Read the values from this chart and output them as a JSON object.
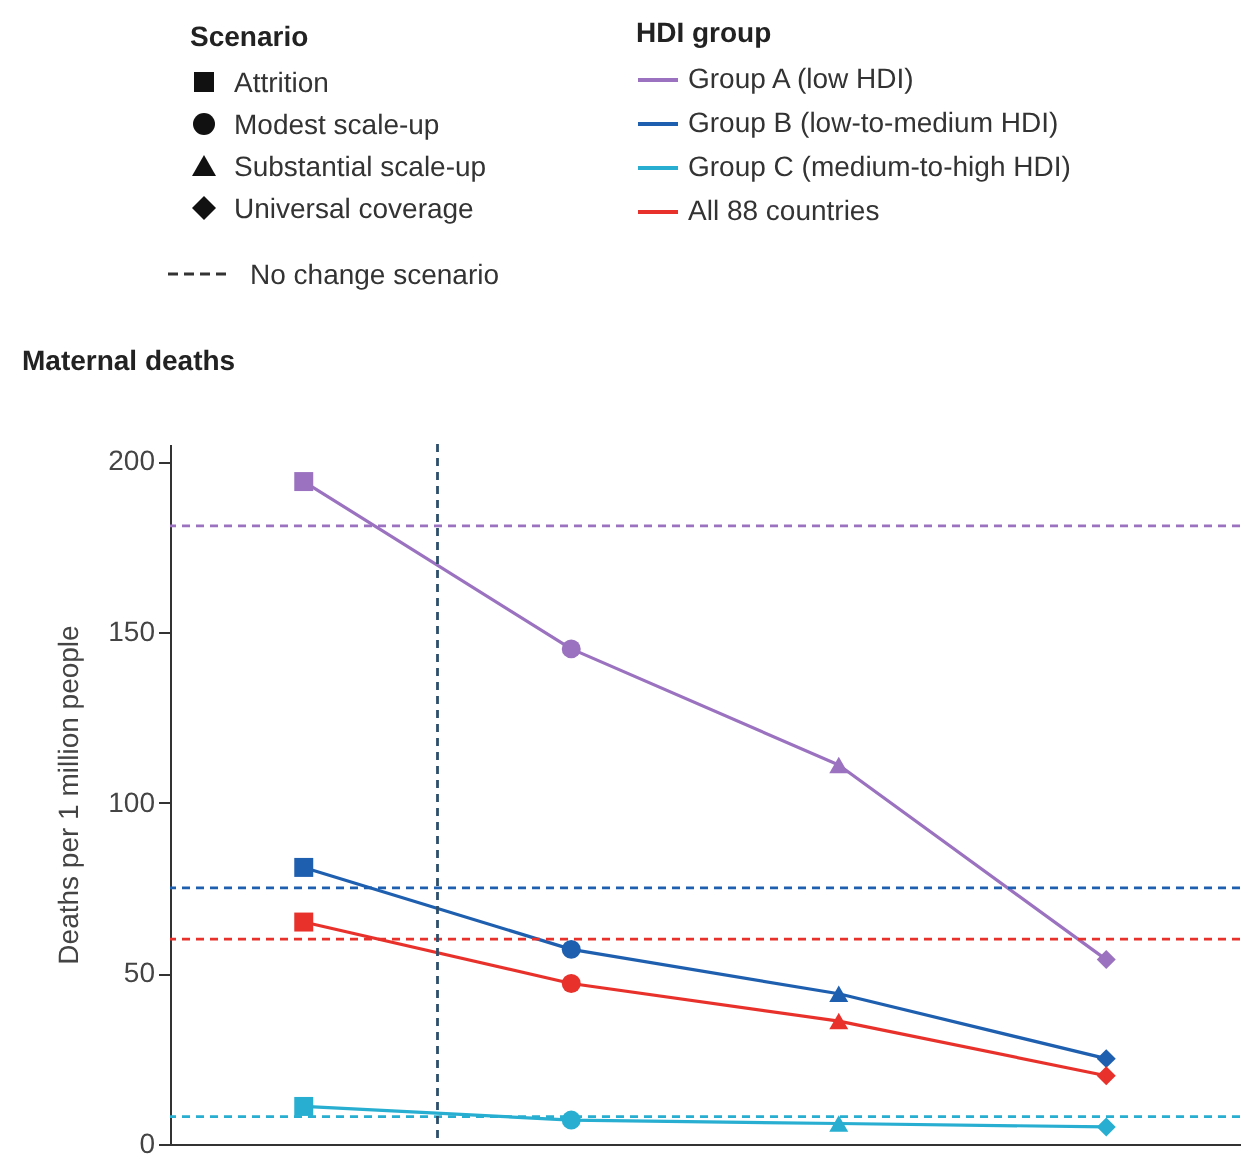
{
  "chart_data": {
    "type": "line",
    "title": "Maternal deaths",
    "ylabel": "Deaths per 1 million people",
    "legend_title": "HDI group",
    "annotations": [
      "Scenario",
      "Attrition",
      "Modest scale-up",
      "Substantial scale-up",
      "Universal coverage",
      "No change scenario"
    ],
    "categories": [
      null,
      null,
      null,
      null
    ],
    "series": [
      {
        "name": "Group A (low HDI)",
        "color": "#9b72c0",
        "marker": "square",
        "values": [
          194,
          145,
          111,
          54
        ]
      },
      {
        "name": "Group B (low-to-medium HDI)",
        "color": "#1f5fb0",
        "marker": "square",
        "values": [
          81,
          57,
          44,
          25
        ]
      },
      {
        "name": "Group C (medium-to-high HDI)",
        "color": "#27aed0",
        "marker": "square",
        "values": [
          11,
          7,
          6,
          5
        ]
      },
      {
        "name": "All 88 countries",
        "color": "#e8312b",
        "marker": "square",
        "values": [
          65,
          47,
          36,
          20
        ]
      }
    ],
    "ref_lines": [
      {
        "axis": "y",
        "value": 181,
        "color": "#9b72c0",
        "line_style": "dashed"
      },
      {
        "axis": "y",
        "value": 75,
        "color": "#1f5fb0",
        "line_style": "dashed"
      },
      {
        "axis": "y",
        "value": 60,
        "color": "#e8312b",
        "line_style": "dashed"
      },
      {
        "axis": "y",
        "value": 8,
        "color": "#27aed0",
        "line_style": "dashed"
      }
    ],
    "ylim": [
      0,
      205
    ],
    "yticks": [
      0,
      50,
      100,
      150,
      200
    ],
    "tick_labels": "y",
    "legend": "top right"
  }
}
